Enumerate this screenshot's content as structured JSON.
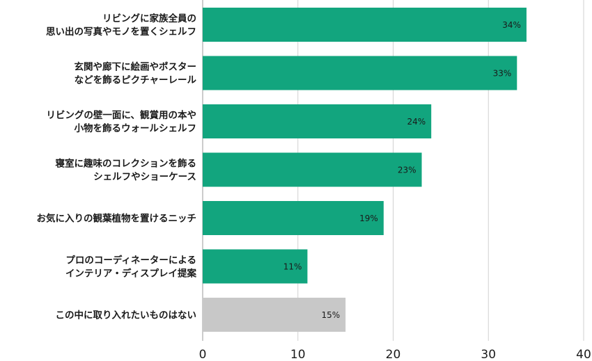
{
  "chart_data": {
    "type": "bar",
    "orientation": "horizontal",
    "categories": [
      [
        "リビングに家族全員の",
        "思い出の写真やモノを置くシェルフ"
      ],
      [
        "玄関や廊下に絵画やポスター",
        "などを飾るピクチャーレール"
      ],
      [
        "リビングの壁一面に、観賞用の本や",
        "小物を飾るウォールシェルフ"
      ],
      [
        "寝室に趣味のコレクションを飾る",
        "シェルフやショーケース"
      ],
      [
        "お気に入りの観葉植物を置けるニッチ"
      ],
      [
        "プロのコーディネーターによる",
        "インテリア・ディスプレイ提案"
      ],
      [
        "この中に取り入れたいものはない"
      ]
    ],
    "values": [
      34,
      33,
      24,
      23,
      19,
      11,
      15
    ],
    "data_labels": [
      "34%",
      "33%",
      "24%",
      "23%",
      "19%",
      "11%",
      "15%"
    ],
    "bar_colors": [
      "#12a57e",
      "#12a57e",
      "#12a57e",
      "#12a57e",
      "#12a57e",
      "#12a57e",
      "#c8c8c8"
    ],
    "xlim": [
      0,
      40
    ],
    "xticks": [
      0,
      10,
      20,
      30,
      40
    ],
    "xtick_labels": [
      "0",
      "10",
      "20",
      "30",
      "40"
    ],
    "grid": true,
    "title": "",
    "xlabel": "",
    "ylabel": ""
  }
}
